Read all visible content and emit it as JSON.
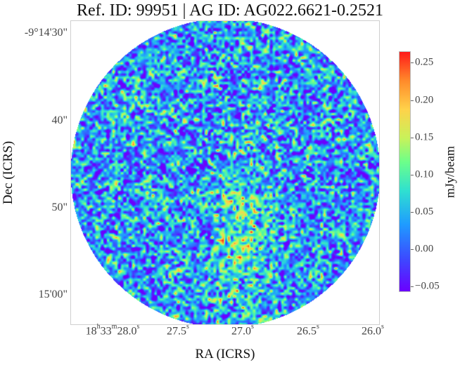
{
  "title": "Ref. ID: 99951 | AG ID: AG022.6621-0.2521",
  "axes": {
    "xlabel": "RA (ICRS)",
    "ylabel": "Dec (ICRS)",
    "yticks": [
      "-9°14'30\"",
      "40\"",
      "50\"",
      "15'00\""
    ],
    "xticks": [
      {
        "main": "18",
        "h": "h",
        "mid": "33",
        "m": "m",
        "sec": "28.0",
        "s": "s"
      },
      {
        "main": "27.5",
        "s": "s"
      },
      {
        "main": "27.0",
        "s": "s"
      },
      {
        "main": "26.5",
        "s": "s"
      },
      {
        "main": "26.0",
        "s": "s"
      }
    ]
  },
  "colorbar": {
    "label": "mJy/beam",
    "ticks": [
      "0.25",
      "0.20",
      "0.15",
      "0.10",
      "0.05",
      "0.00",
      "−0.05"
    ],
    "range": [
      -0.07,
      0.27
    ],
    "colormap": "rainbow"
  }
}
